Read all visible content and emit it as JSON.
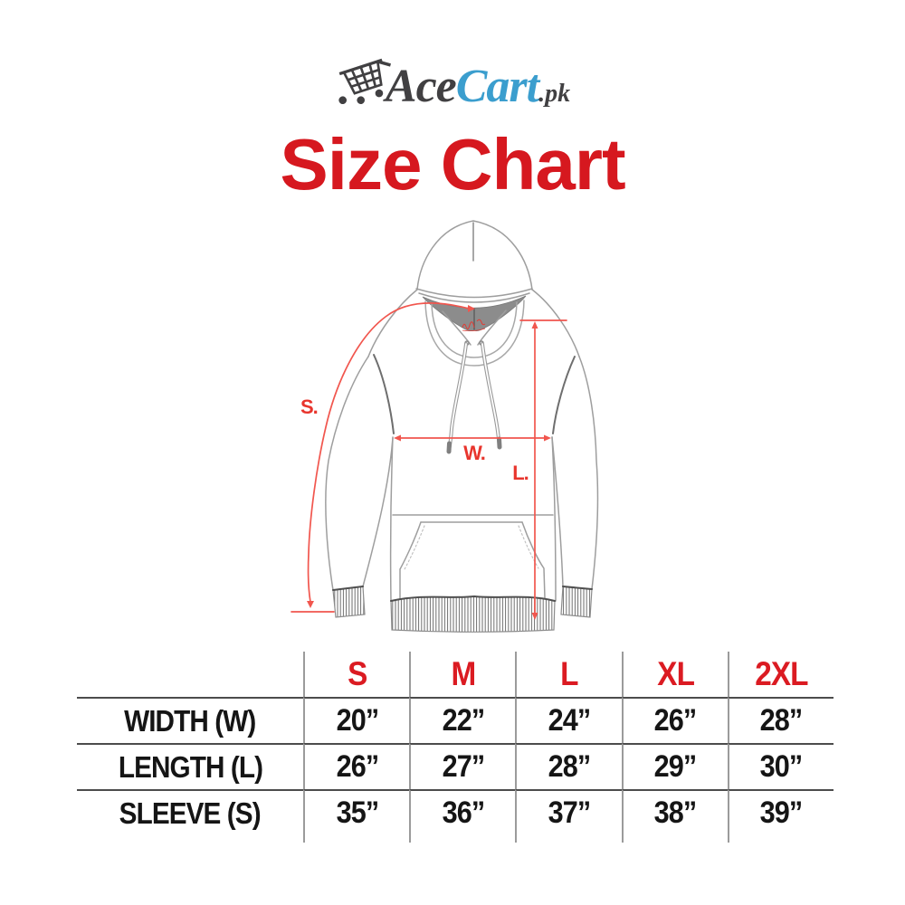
{
  "logo": {
    "ace": "Ace",
    "cart": "Cart",
    "domain": ".pk",
    "colors": {
      "dark": "#414042",
      "blue": "#3b9ece"
    }
  },
  "title": "Size Chart",
  "title_color": "#d6181f",
  "diagram": {
    "measurement_labels": {
      "sleeve": "S.",
      "width": "W.",
      "length": "L."
    },
    "accent_color": "#ef4136",
    "icons": [
      "hoodie-line-drawing",
      "chest-brand-script-icon",
      "measurement-arrows"
    ]
  },
  "table": {
    "columns": [
      "S",
      "M",
      "L",
      "XL",
      "2XL"
    ],
    "rows": [
      {
        "label": "WIDTH (W)",
        "values": [
          "20”",
          "22”",
          "24”",
          "26”",
          "28”"
        ]
      },
      {
        "label": "LENGTH (L)",
        "values": [
          "26”",
          "27”",
          "28”",
          "29”",
          "30”"
        ]
      },
      {
        "label": "SLEEVE (S)",
        "values": [
          "35”",
          "36”",
          "37”",
          "38”",
          "39”"
        ]
      }
    ],
    "header_color": "#db1b22"
  },
  "icons": {
    "cart-logo-icon": "shopping cart line drawing with two wheels and motion dot"
  }
}
